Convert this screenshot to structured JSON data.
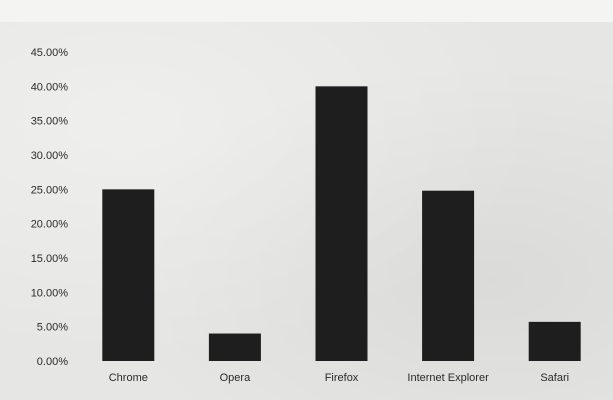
{
  "chart_data": {
    "type": "bar",
    "title": "",
    "xlabel": "",
    "ylabel": "",
    "categories": [
      "Chrome",
      "Opera",
      "Firefox",
      "Internet Explorer",
      "Safari"
    ],
    "values": [
      25.0,
      4.0,
      40.0,
      24.8,
      5.7
    ],
    "ylim": [
      0,
      45
    ],
    "yticks": [
      0,
      5,
      10,
      15,
      20,
      25,
      30,
      35,
      40,
      45
    ],
    "ytick_labels": [
      "0.00%",
      "5.00%",
      "10.00%",
      "15.00%",
      "20.00%",
      "25.00%",
      "30.00%",
      "35.00%",
      "40.00%",
      "45.00%"
    ],
    "grid": false,
    "legend": "none",
    "bar_color": "#1e1e1e"
  }
}
